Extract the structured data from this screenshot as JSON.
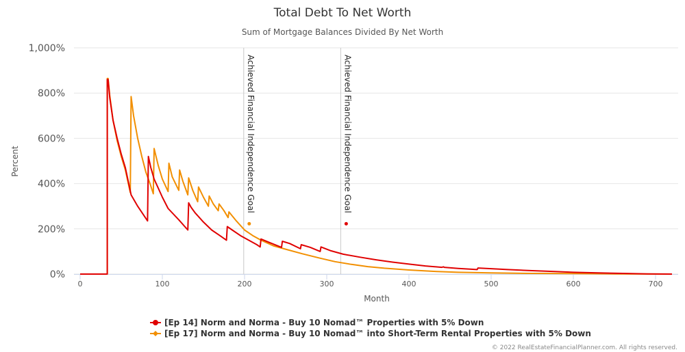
{
  "chart_data": {
    "type": "line",
    "title": "Total Debt To Net Worth",
    "subtitle": "Sum of Mortgage Balances Divided By Net Worth",
    "xlabel": "Month",
    "ylabel": "Percent",
    "xlim": [
      0,
      725
    ],
    "ylim": [
      0,
      1000
    ],
    "x_ticks": [
      0,
      100,
      200,
      300,
      400,
      500,
      600,
      700
    ],
    "y_ticks": [
      0,
      200,
      400,
      600,
      800,
      1000
    ],
    "y_tick_labels": [
      "0%",
      "200%",
      "400%",
      "600%",
      "800%",
      "1,000%"
    ],
    "grid": "horizontal",
    "legend_position": "bottom-center",
    "plot_lines": [
      {
        "x": 199,
        "label": "Achieved Financial Independence Goal",
        "marker_color": "#f28f00",
        "marker_y": 277
      },
      {
        "x": 317,
        "label": "Achieved Financial Independence Goal",
        "marker_color": "#e00000",
        "marker_y": 277
      }
    ],
    "series": [
      {
        "name": "[Ep 14] Norm and Norma - Buy 10 Nomad™ Properties with 5% Down",
        "color": "#e00000",
        "points": [
          [
            0,
            0
          ],
          [
            32,
            0
          ],
          [
            33,
            0
          ],
          [
            33,
            860
          ],
          [
            34,
            860
          ],
          [
            36,
            780
          ],
          [
            40,
            680
          ],
          [
            45,
            600
          ],
          [
            50,
            530
          ],
          [
            55,
            470
          ],
          [
            62,
            350
          ],
          [
            70,
            300
          ],
          [
            82,
            235
          ],
          [
            83,
            520
          ],
          [
            86,
            470
          ],
          [
            90,
            420
          ],
          [
            95,
            380
          ],
          [
            100,
            340
          ],
          [
            107,
            290
          ],
          [
            120,
            240
          ],
          [
            131,
            195
          ],
          [
            132,
            315
          ],
          [
            135,
            295
          ],
          [
            140,
            270
          ],
          [
            150,
            230
          ],
          [
            160,
            195
          ],
          [
            170,
            170
          ],
          [
            178,
            150
          ],
          [
            179,
            210
          ],
          [
            185,
            195
          ],
          [
            195,
            170
          ],
          [
            205,
            150
          ],
          [
            215,
            130
          ],
          [
            219,
            120
          ],
          [
            220,
            155
          ],
          [
            230,
            140
          ],
          [
            245,
            118
          ],
          [
            246,
            145
          ],
          [
            255,
            135
          ],
          [
            268,
            112
          ],
          [
            269,
            130
          ],
          [
            280,
            118
          ],
          [
            292,
            100
          ],
          [
            293,
            120
          ],
          [
            305,
            103
          ],
          [
            320,
            88
          ],
          [
            340,
            75
          ],
          [
            360,
            63
          ],
          [
            380,
            53
          ],
          [
            400,
            44
          ],
          [
            420,
            36
          ],
          [
            440,
            30
          ],
          [
            442,
            32
          ],
          [
            443,
            30
          ],
          [
            460,
            25
          ],
          [
            483,
            20
          ],
          [
            484,
            27
          ],
          [
            500,
            24
          ],
          [
            520,
            20
          ],
          [
            550,
            15
          ],
          [
            580,
            11
          ],
          [
            600,
            8
          ],
          [
            630,
            5
          ],
          [
            660,
            3
          ],
          [
            690,
            1
          ],
          [
            720,
            0
          ]
        ]
      },
      {
        "name": "[Ep 17] Norm and Norma - Buy 10 Nomad™ into Short-Term Rental Properties with 5% Down",
        "color": "#f28f00",
        "points": [
          [
            0,
            0
          ],
          [
            32,
            0
          ],
          [
            33,
            0
          ],
          [
            33,
            865
          ],
          [
            34,
            865
          ],
          [
            36,
            790
          ],
          [
            40,
            680
          ],
          [
            45,
            590
          ],
          [
            50,
            520
          ],
          [
            55,
            460
          ],
          [
            61,
            360
          ],
          [
            62,
            785
          ],
          [
            65,
            700
          ],
          [
            70,
            600
          ],
          [
            75,
            520
          ],
          [
            80,
            450
          ],
          [
            85,
            400
          ],
          [
            89,
            355
          ],
          [
            90,
            555
          ],
          [
            95,
            480
          ],
          [
            100,
            420
          ],
          [
            107,
            365
          ],
          [
            108,
            490
          ],
          [
            112,
            430
          ],
          [
            120,
            370
          ],
          [
            121,
            460
          ],
          [
            125,
            410
          ],
          [
            131,
            350
          ],
          [
            132,
            425
          ],
          [
            137,
            370
          ],
          [
            143,
            320
          ],
          [
            144,
            385
          ],
          [
            150,
            340
          ],
          [
            156,
            300
          ],
          [
            157,
            345
          ],
          [
            162,
            310
          ],
          [
            168,
            280
          ],
          [
            169,
            310
          ],
          [
            175,
            280
          ],
          [
            180,
            250
          ],
          [
            181,
            275
          ],
          [
            190,
            235
          ],
          [
            200,
            195
          ],
          [
            210,
            170
          ],
          [
            220,
            150
          ],
          [
            235,
            125
          ],
          [
            250,
            110
          ],
          [
            270,
            90
          ],
          [
            290,
            72
          ],
          [
            310,
            55
          ],
          [
            330,
            43
          ],
          [
            350,
            33
          ],
          [
            370,
            26
          ],
          [
            400,
            18
          ],
          [
            430,
            12
          ],
          [
            460,
            8
          ],
          [
            500,
            5
          ],
          [
            550,
            3
          ],
          [
            600,
            2
          ],
          [
            650,
            1
          ],
          [
            720,
            0
          ]
        ]
      }
    ]
  },
  "credits": "© 2022 RealEstateFinancialPlanner.com. All rights reserved."
}
